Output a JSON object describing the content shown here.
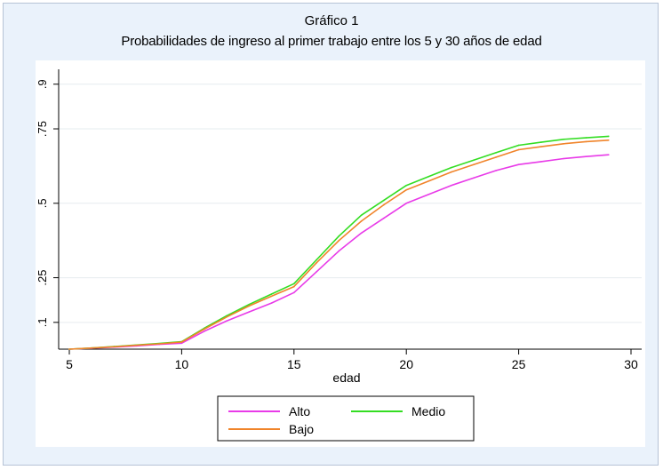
{
  "chart_data": {
    "type": "line",
    "title": "Gráfico 1",
    "subtitle": "Probabilidades de ingreso al primer trabajo entre los 5 y 30 años de edad",
    "xlabel": "edad",
    "ylabel": "",
    "xlim": [
      5,
      30
    ],
    "ylim": [
      0.01,
      0.95
    ],
    "x_ticks": [
      5,
      10,
      15,
      20,
      25,
      30
    ],
    "x_tick_labels": [
      "5",
      "10",
      "15",
      "20",
      "25",
      "30"
    ],
    "y_ticks": [
      0.1,
      0.25,
      0.5,
      0.75,
      0.9
    ],
    "y_tick_labels": [
      ".1",
      ".25",
      ".5",
      ".75",
      ".9"
    ],
    "grid": true,
    "legend_position": "bottom",
    "x": [
      5,
      6,
      7,
      8,
      9,
      10,
      11,
      12,
      13,
      14,
      15,
      16,
      17,
      18,
      19,
      20,
      21,
      22,
      23,
      24,
      25,
      26,
      27,
      28,
      29
    ],
    "series": [
      {
        "name": "Alto",
        "color": "#e83ae8",
        "values": [
          0.01,
          0.013,
          0.017,
          0.021,
          0.026,
          0.03,
          0.07,
          0.105,
          0.135,
          0.165,
          0.2,
          0.27,
          0.34,
          0.4,
          0.45,
          0.5,
          0.53,
          0.56,
          0.585,
          0.61,
          0.63,
          0.64,
          0.65,
          0.657,
          0.663
        ]
      },
      {
        "name": "Medio",
        "color": "#33dd22",
        "values": [
          0.01,
          0.014,
          0.019,
          0.024,
          0.029,
          0.035,
          0.08,
          0.122,
          0.16,
          0.195,
          0.23,
          0.31,
          0.39,
          0.46,
          0.51,
          0.56,
          0.59,
          0.62,
          0.645,
          0.67,
          0.695,
          0.705,
          0.715,
          0.72,
          0.725
        ]
      },
      {
        "name": "Bajo",
        "color": "#f0842a",
        "values": [
          0.01,
          0.014,
          0.018,
          0.023,
          0.028,
          0.034,
          0.077,
          0.118,
          0.155,
          0.188,
          0.22,
          0.3,
          0.375,
          0.44,
          0.495,
          0.545,
          0.575,
          0.605,
          0.63,
          0.655,
          0.68,
          0.69,
          0.7,
          0.707,
          0.712
        ]
      }
    ]
  }
}
